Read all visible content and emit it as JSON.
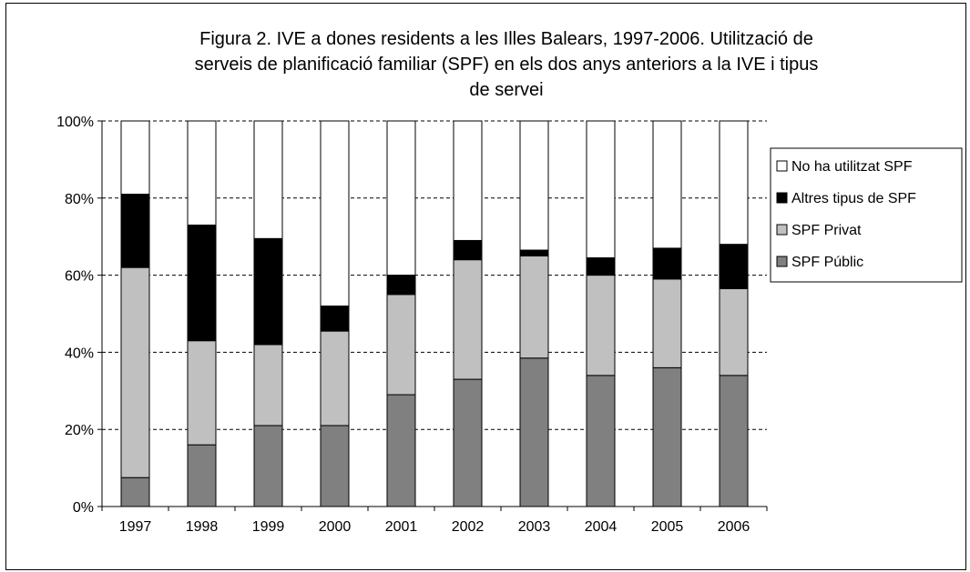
{
  "chart_data": {
    "type": "bar",
    "stacked": true,
    "percent": true,
    "title_lines": [
      "Figura 2. IVE a dones residents a les Illes Balears, 1997-2006. Utilització de",
      "serveis de planificació familiar (SPF) en els dos anys anteriors a la IVE i tipus",
      "de servei"
    ],
    "categories": [
      "1997",
      "1998",
      "1999",
      "2000",
      "2001",
      "2002",
      "2003",
      "2004",
      "2005",
      "2006"
    ],
    "y_ticks": [
      "0%",
      "20%",
      "40%",
      "60%",
      "80%",
      "100%"
    ],
    "ylim": [
      0,
      100
    ],
    "grid": "horizontal dashed",
    "legend_position": "right",
    "series": [
      {
        "name": "SPF Públic",
        "color": "#808080",
        "values": [
          7.5,
          16,
          21,
          21,
          29,
          33,
          38.5,
          34,
          36,
          34
        ]
      },
      {
        "name": "SPF Privat",
        "color": "#c0c0c0",
        "values": [
          54.5,
          27,
          21,
          24.5,
          26,
          31,
          26.5,
          26,
          23,
          22.5
        ]
      },
      {
        "name": "Altres tipus de SPF",
        "color": "#000000",
        "values": [
          19,
          30,
          27.5,
          6.5,
          5,
          5,
          1.5,
          4.5,
          8,
          11.5
        ]
      },
      {
        "name": "No ha utilitzat SPF",
        "color": "#ffffff",
        "values": [
          19,
          27,
          30.5,
          48,
          40,
          31,
          33.5,
          35.5,
          33,
          32
        ]
      }
    ],
    "legend_order": [
      "No ha utilitzat SPF",
      "Altres tipus de SPF",
      "SPF Privat",
      "SPF Públic"
    ]
  }
}
